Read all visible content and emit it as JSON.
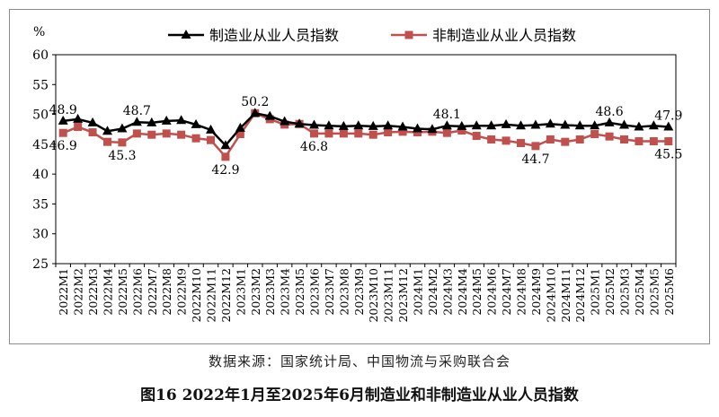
{
  "source_text": "数据来源：国家统计局、中国物流与采购联合会",
  "figure_caption": "图16 2022年1月至2025年6月制造业和非制造业从业人员指数",
  "chart_data": {
    "type": "line",
    "ylabel": "%",
    "ylim": [
      25,
      60
    ],
    "yticks": [
      25,
      30,
      35,
      40,
      45,
      50,
      55,
      60
    ],
    "grid": false,
    "legend_position": "top",
    "categories": [
      "2022M1",
      "2022M2",
      "2022M3",
      "2022M4",
      "2022M5",
      "2022M6",
      "2022M7",
      "2022M8",
      "2022M9",
      "2022M10",
      "2022M11",
      "2022M12",
      "2023M1",
      "2023M2",
      "2023M3",
      "2023M4",
      "2023M5",
      "2023M6",
      "2023M7",
      "2023M8",
      "2023M9",
      "2023M10",
      "2023M11",
      "2023M12",
      "2024M1",
      "2024M2",
      "2024M3",
      "2024M4",
      "2024M5",
      "2024M6",
      "2024M7",
      "2024M8",
      "2024M9",
      "2024M10",
      "2024M11",
      "2024M12",
      "2025M1",
      "2025M2",
      "2025M3",
      "2025M4",
      "2025M5",
      "2025M6"
    ],
    "series": [
      {
        "name": "制造业从业人员指数",
        "color": "#000000",
        "marker": "triangle",
        "values": [
          48.9,
          49.2,
          48.6,
          47.2,
          47.6,
          48.7,
          48.6,
          48.9,
          49.0,
          48.3,
          47.4,
          44.8,
          47.7,
          50.2,
          49.7,
          48.8,
          48.4,
          48.2,
          48.1,
          48.0,
          48.1,
          48.0,
          48.1,
          47.9,
          47.6,
          47.5,
          48.1,
          48.0,
          48.1,
          48.1,
          48.3,
          48.1,
          48.2,
          48.4,
          48.2,
          48.1,
          48.1,
          48.6,
          48.2,
          47.9,
          48.1,
          47.9
        ],
        "data_labels": [
          {
            "index": 0,
            "text": "48.9",
            "position": "above"
          },
          {
            "index": 5,
            "text": "48.7",
            "position": "above"
          },
          {
            "index": 13,
            "text": "50.2",
            "position": "above"
          },
          {
            "index": 26,
            "text": "48.1",
            "position": "above"
          },
          {
            "index": 37,
            "text": "48.6",
            "position": "above"
          },
          {
            "index": 41,
            "text": "47.9",
            "position": "above"
          }
        ]
      },
      {
        "name": "非制造业从业人员指数",
        "color": "#c0504d",
        "marker": "square",
        "values": [
          46.9,
          47.9,
          47.0,
          45.4,
          45.3,
          46.8,
          46.6,
          46.8,
          46.6,
          46.0,
          45.7,
          42.9,
          46.7,
          50.2,
          49.2,
          48.3,
          48.4,
          46.8,
          46.8,
          46.8,
          46.8,
          46.6,
          47.0,
          47.1,
          47.0,
          47.1,
          46.9,
          47.3,
          46.4,
          45.8,
          45.6,
          45.2,
          44.7,
          45.8,
          45.4,
          45.8,
          46.7,
          46.3,
          45.8,
          45.5,
          45.5,
          45.5
        ],
        "data_labels": [
          {
            "index": 0,
            "text": "46.9",
            "position": "below"
          },
          {
            "index": 4,
            "text": "45.3",
            "position": "below"
          },
          {
            "index": 11,
            "text": "42.9",
            "position": "below"
          },
          {
            "index": 17,
            "text": "46.8",
            "position": "below"
          },
          {
            "index": 32,
            "text": "44.7",
            "position": "below"
          },
          {
            "index": 41,
            "text": "45.5",
            "position": "below"
          }
        ]
      }
    ]
  }
}
